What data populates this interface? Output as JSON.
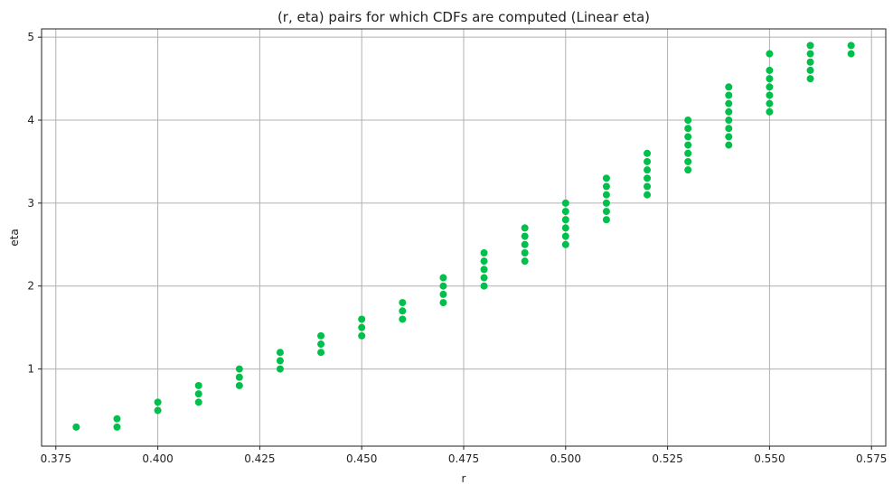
{
  "chart_data": {
    "type": "scatter",
    "title": "(r, eta) pairs for which CDFs are computed (Linear eta)",
    "xlabel": "r",
    "ylabel": "eta",
    "xlim": [
      0.3715,
      0.5785
    ],
    "ylim": [
      0.07,
      5.1
    ],
    "x_ticks": [
      "0.375",
      "0.400",
      "0.425",
      "0.450",
      "0.475",
      "0.500",
      "0.525",
      "0.550",
      "0.575"
    ],
    "y_ticks": [
      "1",
      "2",
      "3",
      "4",
      "5"
    ],
    "grid": true,
    "marker_color": "#00c04b",
    "grid_color": "#b0b0b0",
    "groups": [
      {
        "r": 0.38,
        "eta": [
          0.3
        ]
      },
      {
        "r": 0.39,
        "eta": [
          0.3,
          0.4
        ]
      },
      {
        "r": 0.4,
        "eta": [
          0.5,
          0.6
        ]
      },
      {
        "r": 0.41,
        "eta": [
          0.6,
          0.7,
          0.8
        ]
      },
      {
        "r": 0.42,
        "eta": [
          0.8,
          0.9,
          1.0
        ]
      },
      {
        "r": 0.43,
        "eta": [
          1.0,
          1.1,
          1.2
        ]
      },
      {
        "r": 0.44,
        "eta": [
          1.2,
          1.3,
          1.4
        ]
      },
      {
        "r": 0.45,
        "eta": [
          1.4,
          1.5,
          1.6
        ]
      },
      {
        "r": 0.46,
        "eta": [
          1.6,
          1.7,
          1.8
        ]
      },
      {
        "r": 0.47,
        "eta": [
          1.8,
          1.9,
          2.0,
          2.1
        ]
      },
      {
        "r": 0.48,
        "eta": [
          2.0,
          2.1,
          2.2,
          2.3,
          2.4
        ]
      },
      {
        "r": 0.49,
        "eta": [
          2.3,
          2.4,
          2.5,
          2.6,
          2.7
        ]
      },
      {
        "r": 0.5,
        "eta": [
          2.5,
          2.6,
          2.7,
          2.8,
          2.9,
          3.0
        ]
      },
      {
        "r": 0.51,
        "eta": [
          2.8,
          2.9,
          3.0,
          3.1,
          3.2,
          3.3
        ]
      },
      {
        "r": 0.52,
        "eta": [
          3.1,
          3.2,
          3.3,
          3.4,
          3.5,
          3.6
        ]
      },
      {
        "r": 0.53,
        "eta": [
          3.4,
          3.5,
          3.6,
          3.7,
          3.8,
          3.9,
          4.0
        ]
      },
      {
        "r": 0.54,
        "eta": [
          3.7,
          3.8,
          3.9,
          4.0,
          4.1,
          4.2,
          4.3,
          4.4
        ]
      },
      {
        "r": 0.55,
        "eta": [
          4.1,
          4.2,
          4.3,
          4.4,
          4.5,
          4.6,
          4.8
        ]
      },
      {
        "r": 0.56,
        "eta": [
          4.5,
          4.6,
          4.7,
          4.8,
          4.9
        ]
      },
      {
        "r": 0.57,
        "eta": [
          4.8,
          4.9
        ]
      }
    ]
  }
}
